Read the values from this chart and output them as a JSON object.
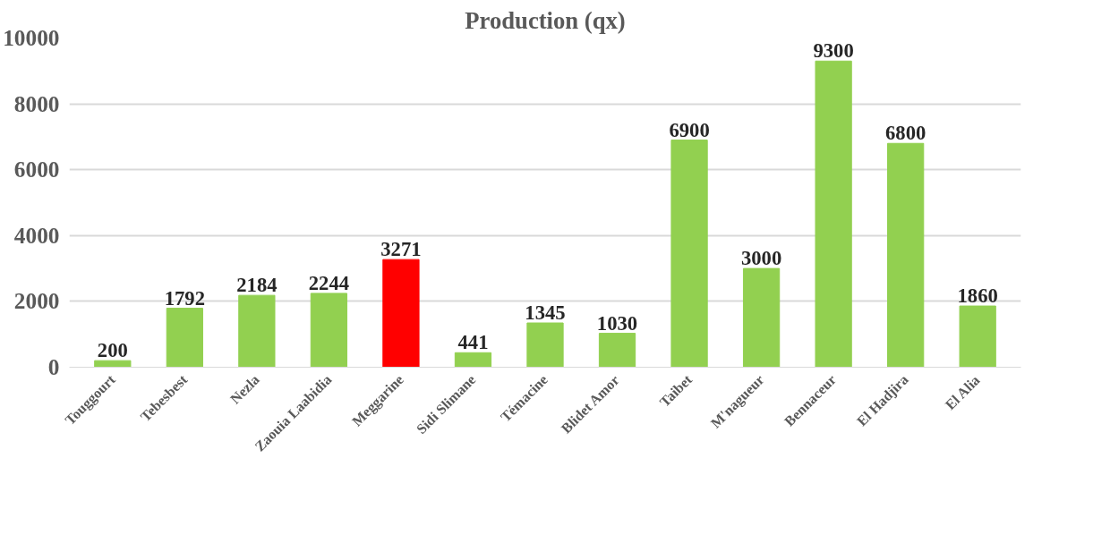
{
  "chart_data": {
    "type": "bar",
    "title": "Production (qx)",
    "categories": [
      "Touggourt",
      "Tebesbest",
      "Nezla",
      "Zaouia Laabidia",
      "Meggarine",
      "Sidi Slimane",
      "Témacine",
      "Blidet Amor",
      "Taibet",
      "M'nagueur",
      "Bennaceur",
      "El Hadjira",
      "El Alia"
    ],
    "values": [
      200,
      1792,
      2184,
      2244,
      3271,
      441,
      1345,
      1030,
      6900,
      3000,
      9300,
      6800,
      1860
    ],
    "colors": [
      "#92d050",
      "#92d050",
      "#92d050",
      "#92d050",
      "#ff0000",
      "#92d050",
      "#92d050",
      "#92d050",
      "#92d050",
      "#92d050",
      "#92d050",
      "#92d050",
      "#92d050"
    ],
    "ylim": [
      0,
      10000
    ],
    "yticks": [
      0,
      2000,
      4000,
      6000,
      8000,
      10000
    ],
    "grid": "y",
    "data_labels": true
  }
}
